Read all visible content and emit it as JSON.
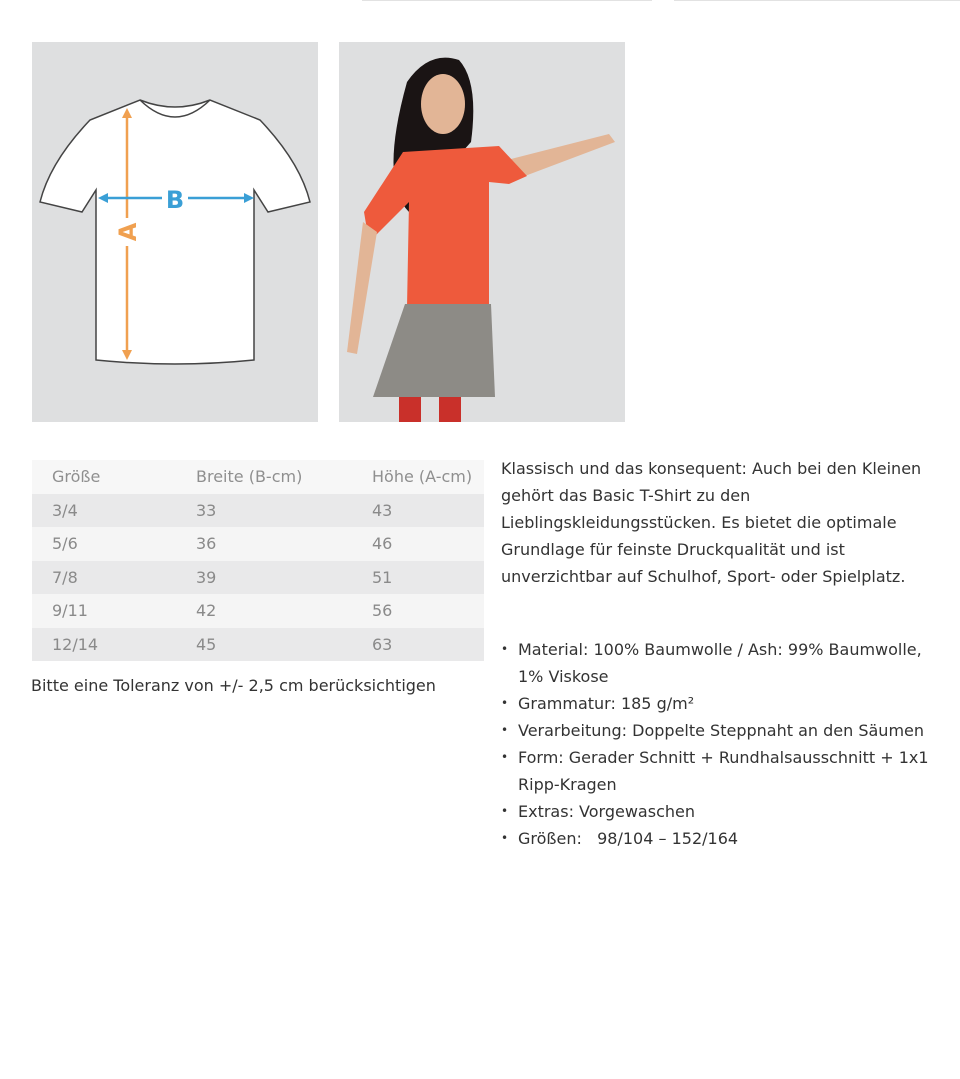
{
  "images": {
    "diagram_alt": "T-shirt measurement diagram",
    "diagram_labels": {
      "width": "B",
      "height": "A"
    },
    "photo_alt": "Child wearing orange T-shirt"
  },
  "size_table": {
    "headers": [
      "Größe",
      "Breite (B-cm)",
      "Höhe (A-cm)"
    ],
    "rows": [
      [
        "3/4",
        "33",
        "43"
      ],
      [
        "5/6",
        "36",
        "46"
      ],
      [
        "7/8",
        "39",
        "51"
      ],
      [
        "9/11",
        "42",
        "56"
      ],
      [
        "12/14",
        "45",
        "63"
      ]
    ]
  },
  "tolerance_note": "Bitte eine Toleranz von +/- 2,5 cm berücksichtigen",
  "description": "Klassisch und das konsequent: Auch bei den Kleinen gehört das Basic T-Shirt zu den Lieblingskleidungsstücken. Es bietet die optimale Grundlage für feinste Druckqualität und ist unverzichtbar auf Schulhof, Sport- oder Spielplatz.",
  "features": [
    "Material: 100% Baumwolle / Ash: 99% Baumwolle, 1% Viskose",
    "Grammatur: 185 g/m²",
    "Verarbeitung: Doppelte Steppnaht an den Säumen",
    "Form: Gerader Schnitt + Rundhalsausschnitt + 1x1 Ripp-Kragen",
    "Extras: Vorgewaschen",
    "Größen:   98/104 – 152/164"
  ],
  "colors": {
    "arrow_orange": "#f0a050",
    "arrow_blue": "#3a9fd6",
    "shirt_orange": "#ee5a3c"
  }
}
